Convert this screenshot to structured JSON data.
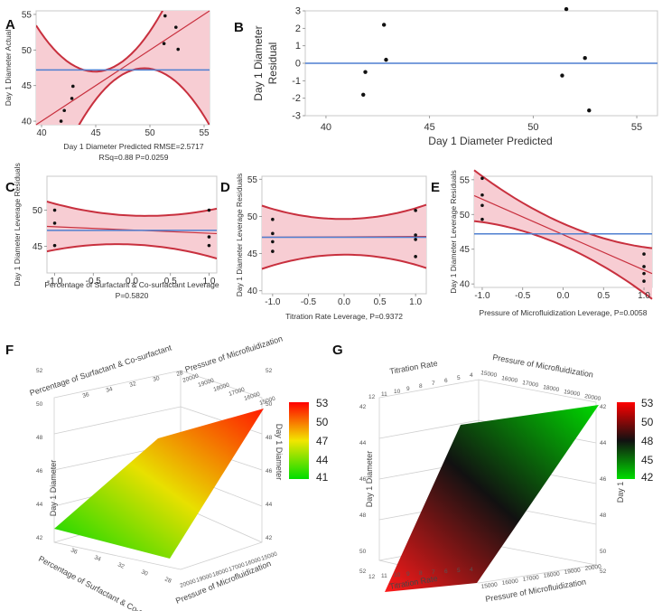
{
  "panel_labels": {
    "A": "A",
    "B": "B",
    "C": "C",
    "D": "D",
    "E": "E",
    "F": "F",
    "G": "G"
  },
  "colors": {
    "band": "#f7cdd3",
    "curve": "#c8303e",
    "mean": "#4f7fd0",
    "point": "#111111",
    "grid": "#dddddd",
    "red": "#ff0000",
    "yellow": "#f2e600",
    "green": "#00dd00",
    "black": "#111111"
  },
  "chart_data": [
    {
      "id": "A",
      "type": "scatter",
      "subtitle": "Actual by predicted",
      "xlabel": "Day 1 Diameter Predicted RMSE=2.5717",
      "stats": "RSq=0.88 P=0.0259",
      "ylabel": "Day 1 Diameter Actual",
      "xlim": [
        39.5,
        55.5
      ],
      "ylim": [
        39.5,
        55.5
      ],
      "xticks": [
        40,
        45,
        50,
        55
      ],
      "yticks": [
        40,
        45,
        50,
        55
      ],
      "mean": 47.2,
      "points": [
        [
          41.8,
          40
        ],
        [
          42.1,
          41.5
        ],
        [
          42.8,
          43.2
        ],
        [
          42.9,
          44.9
        ],
        [
          51.3,
          50.9
        ],
        [
          51.4,
          54.8
        ],
        [
          52.4,
          53.2
        ],
        [
          52.6,
          50.1
        ]
      ]
    },
    {
      "id": "B",
      "type": "scatter",
      "subtitle": "Residual by predicted",
      "xlabel": "Day 1 Diameter Predicted",
      "ylabel": "Day 1 Diameter Residual",
      "xlim": [
        39,
        56
      ],
      "ylim": [
        -3,
        3
      ],
      "xticks": [
        40,
        45,
        50,
        55
      ],
      "yticks": [
        -3,
        -2,
        -1,
        0,
        1,
        2,
        3
      ],
      "zero": 0,
      "points": [
        [
          41.8,
          -1.8
        ],
        [
          41.9,
          -0.5
        ],
        [
          42.8,
          2.2
        ],
        [
          42.9,
          0.2
        ],
        [
          51.4,
          -0.7
        ],
        [
          51.6,
          3.1
        ],
        [
          52.5,
          0.3
        ],
        [
          52.7,
          -2.7
        ]
      ]
    },
    {
      "id": "C",
      "type": "scatter",
      "subtitle": "Leverage plot",
      "xlabel": "Percentage of Surfactant & Co-surfactant Leverage",
      "stats": "P=0.5820",
      "ylabel": "Day 1 Diameter Leverage Residuals",
      "xlim": [
        -1.1,
        1.1
      ],
      "ylim": [
        41.3,
        54.7
      ],
      "xticks": [
        -1,
        -0.5,
        0,
        0.5,
        1
      ],
      "xtick_labels": [
        "-1.0",
        "-0.5",
        "0.0",
        "0.5",
        "1.0"
      ],
      "yticks": [
        45,
        50
      ],
      "mean": 47.2,
      "fit": [
        -1,
        47.7,
        1,
        46.8
      ],
      "band_halfwidth": [
        3.2,
        2.0,
        3.2
      ],
      "points": [
        [
          -1,
          50
        ],
        [
          -1,
          48.2
        ],
        [
          -1,
          45.1
        ],
        [
          1,
          50
        ],
        [
          1,
          46.3
        ],
        [
          1,
          45.1
        ]
      ]
    },
    {
      "id": "D",
      "type": "scatter",
      "subtitle": "Leverage plot",
      "xlabel": "Titration Rate Leverage, P=0.9372",
      "ylabel": "Day 1 Diameter Leverage Residuals",
      "xlim": [
        -1.15,
        1.15
      ],
      "ylim": [
        39.6,
        55.4
      ],
      "xticks": [
        -1,
        -0.5,
        0,
        0.5,
        1
      ],
      "xtick_labels": [
        "-1.0",
        "-0.5",
        "0.0",
        "0.5",
        "1.0"
      ],
      "yticks": [
        40,
        45,
        50,
        55
      ],
      "mean": 47.2,
      "fit": [
        -1,
        47.2,
        1,
        47.3
      ],
      "band_halfwidth": [
        3.8,
        2.4,
        3.8
      ],
      "points": [
        [
          -1,
          49.6
        ],
        [
          -1,
          47.7
        ],
        [
          -1,
          46.6
        ],
        [
          -1,
          45.3
        ],
        [
          1,
          50.8
        ],
        [
          1,
          47.5
        ],
        [
          1,
          46.9
        ],
        [
          1,
          44.6
        ]
      ]
    },
    {
      "id": "E",
      "type": "scatter",
      "subtitle": "Leverage plot",
      "xlabel": "Pressure of Microfluidization Leverage, P=0.0058",
      "ylabel": "Day 1 Diameter Leverage Residuals",
      "xlim": [
        -1.1,
        1.1
      ],
      "ylim": [
        39.5,
        55.5
      ],
      "xticks": [
        -1,
        -0.5,
        0,
        0.5,
        1
      ],
      "xtick_labels": [
        "-1.0",
        "-0.5",
        "0.0",
        "0.5",
        "1.0"
      ],
      "yticks": [
        40,
        45,
        50,
        55
      ],
      "mean": 47.2,
      "fit": [
        -1,
        52.2,
        1,
        42.0
      ],
      "band_halfwidth": [
        3.3,
        1.6,
        3.3
      ],
      "points": [
        [
          -1,
          55.2
        ],
        [
          -1,
          52.8
        ],
        [
          -1,
          51.3
        ],
        [
          -1,
          49.3
        ],
        [
          1,
          44.3
        ],
        [
          1,
          42.5
        ],
        [
          1,
          41.5
        ],
        [
          1,
          40.4
        ]
      ]
    },
    {
      "id": "F",
      "type": "surface",
      "subtitle": "Response surface",
      "z_label": "Day 1 Diameter",
      "axis1_label": "Percentage of Surfactant & Co-surfactant",
      "axis2_label": "Pressure of Microfluidization",
      "axis1_ticks_top": [
        "36",
        "34",
        "32",
        "30",
        "28"
      ],
      "axis2_ticks_top": [
        "20000",
        "19000",
        "18000",
        "17000",
        "16000",
        "15000"
      ],
      "axis1_ticks_bottom": [
        "36",
        "34",
        "32",
        "30",
        "28"
      ],
      "axis2_ticks_bottom": [
        "20000",
        "19000",
        "18000",
        "17000",
        "16000",
        "15000"
      ],
      "z_ticks": [
        "42",
        "44",
        "46",
        "48",
        "50",
        "52"
      ],
      "colorbar": {
        "ticks": [
          "53",
          "50",
          "47",
          "44",
          "41"
        ],
        "stops": [
          "red",
          "yellow",
          "green"
        ]
      }
    },
    {
      "id": "G",
      "type": "surface",
      "subtitle": "Response surface",
      "z_label": "Day 1 Diameter",
      "axis1_label": "Titration Rate",
      "axis2_label": "Pressure of Microfluidization",
      "axis1_ticks_top": [
        "12",
        "11",
        "10",
        "9",
        "8",
        "7",
        "6",
        "5",
        "4"
      ],
      "axis2_ticks_top": [
        "15000",
        "16000",
        "17000",
        "18000",
        "19000",
        "20000"
      ],
      "axis1_ticks_bottom": [
        "12",
        "11",
        "10",
        "9",
        "8",
        "7",
        "6",
        "5",
        "4"
      ],
      "axis2_ticks_bottom": [
        "15000",
        "16000",
        "17000",
        "18000",
        "19000",
        "20000"
      ],
      "z_ticks_left": [
        "42",
        "44",
        "46",
        "48",
        "50",
        "52"
      ],
      "z_ticks_right": [
        "42",
        "44",
        "46",
        "48",
        "50",
        "52"
      ],
      "colorbar": {
        "ticks": [
          "53",
          "50",
          "48",
          "45",
          "42"
        ],
        "stops": [
          "red",
          "black",
          "green"
        ]
      }
    }
  ]
}
